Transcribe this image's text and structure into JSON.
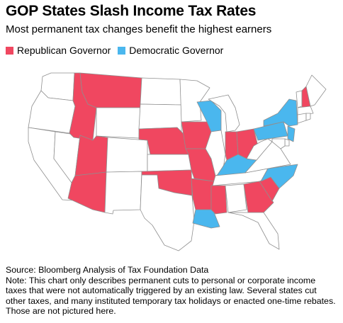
{
  "header": {
    "title": "GOP States Slash Income Tax Rates",
    "subtitle": "Most permanent tax changes benefit the highest earners"
  },
  "legend": [
    {
      "label": "Republican Governor",
      "color": "#f04760"
    },
    {
      "label": "Democratic Governor",
      "color": "#4ab7ee"
    }
  ],
  "colors": {
    "republican": "#f04760",
    "democratic": "#4ab7ee",
    "none": "#ffffff",
    "border": "#8f8f8f"
  },
  "map": {
    "states_with_cuts": {
      "republican": [
        "MT",
        "ID",
        "UT",
        "AZ",
        "NE",
        "IA",
        "MO",
        "OK",
        "AR",
        "MS",
        "IN",
        "OH",
        "GA",
        "SC",
        "NH"
      ],
      "democratic": [
        "WI",
        "KY",
        "NC",
        "LA",
        "NY",
        "PA",
        "NJ"
      ]
    }
  },
  "footer": {
    "source": "Source: Bloomberg Analysis of Tax Foundation Data",
    "note": "Note: This chart only describes permanent cuts to personal or corporate income taxes that were not automatically triggered by an existing law. Several states cut other taxes, and many instituted temporary tax holidays or enacted one-time rebates. Those are not pictured here."
  }
}
